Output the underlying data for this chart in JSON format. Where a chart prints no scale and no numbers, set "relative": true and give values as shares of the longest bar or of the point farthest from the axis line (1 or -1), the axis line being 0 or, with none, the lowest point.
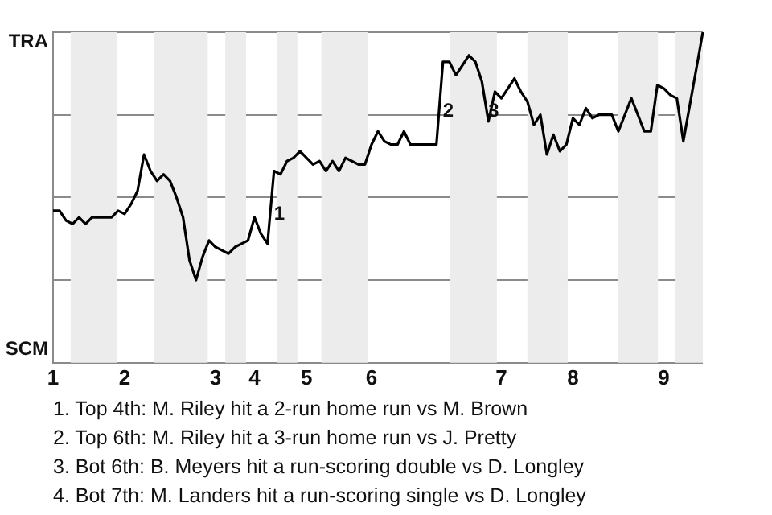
{
  "chart_data": {
    "type": "line",
    "relative": true,
    "categories": [
      "1",
      null,
      null,
      null,
      null,
      null,
      null,
      null,
      null,
      null,
      null,
      "2",
      null,
      null,
      null,
      null,
      null,
      null,
      null,
      null,
      null,
      null,
      null,
      null,
      null,
      "3",
      null,
      null,
      null,
      null,
      null,
      "4",
      null,
      null,
      null,
      null,
      null,
      null,
      null,
      "5",
      null,
      null,
      null,
      null,
      null,
      null,
      null,
      null,
      null,
      "6",
      null,
      null,
      null,
      null,
      null,
      null,
      null,
      null,
      null,
      null,
      null,
      null,
      null,
      null,
      null,
      null,
      null,
      null,
      null,
      "7",
      null,
      null,
      null,
      null,
      null,
      null,
      null,
      null,
      null,
      null,
      "8",
      null,
      null,
      null,
      null,
      null,
      null,
      null,
      null,
      null,
      null,
      null,
      null,
      null,
      "9",
      null,
      null,
      null,
      null,
      null,
      null
    ],
    "series": [
      {
        "color": "#000000",
        "values": [
          0.46,
          0.46,
          0.43,
          0.42,
          0.44,
          0.42,
          0.44,
          0.44,
          0.44,
          0.44,
          0.46,
          0.45,
          0.48,
          0.52,
          0.63,
          0.58,
          0.55,
          0.57,
          0.55,
          0.5,
          0.44,
          0.31,
          0.25,
          0.32,
          0.37,
          0.35,
          0.34,
          0.33,
          0.35,
          0.36,
          0.37,
          0.44,
          0.39,
          0.36,
          0.58,
          0.57,
          0.61,
          0.62,
          0.64,
          0.62,
          0.6,
          0.61,
          0.58,
          0.61,
          0.58,
          0.62,
          0.61,
          0.6,
          0.6,
          0.66,
          0.7,
          0.67,
          0.66,
          0.66,
          0.7,
          0.66,
          0.66,
          0.66,
          0.66,
          0.66,
          0.91,
          0.91,
          0.87,
          0.9,
          0.93,
          0.91,
          0.85,
          0.73,
          0.82,
          0.8,
          0.83,
          0.86,
          0.82,
          0.79,
          0.72,
          0.75,
          0.63,
          0.69,
          0.64,
          0.66,
          0.74,
          0.72,
          0.77,
          0.74,
          0.75,
          0.75,
          0.75,
          0.7,
          0.75,
          0.8,
          0.75,
          0.7,
          0.7,
          0.84,
          0.83,
          0.81,
          0.8,
          0.67,
          0.78,
          0.89,
          1.0
        ]
      }
    ],
    "grid": "y",
    "legend": false,
    "marker": "none",
    "line_style": "solid",
    "annotations": [
      "TRA",
      "SCM",
      {
        "text": "1",
        "y": 0.45
      },
      {
        "text": "2",
        "y": 0.76
      },
      {
        "text": "3",
        "y": 0.76
      },
      "1. Top 4th: M. Riley hit a 2-run home run vs M. Brown",
      "2. Top 6th: M. Riley hit a 3-run home run vs J. Pretty",
      "3. Bot 6th: B. Meyers hit a run-scoring double vs D. Longley",
      "4. Bot 7th: M. Landers hit a run-scoring single vs D. Longley"
    ]
  }
}
